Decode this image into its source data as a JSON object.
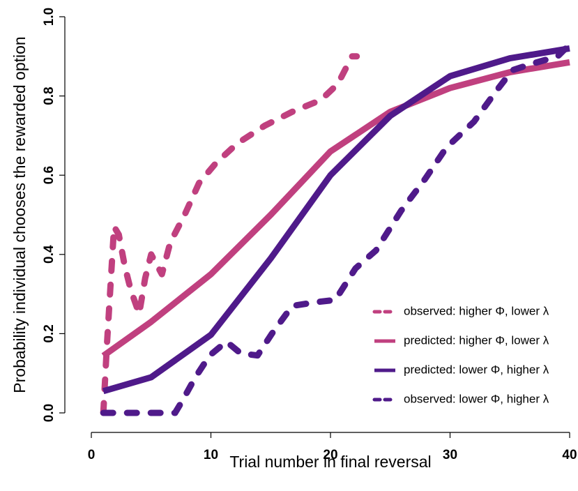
{
  "chart_data": {
    "type": "line",
    "xlabel": "Trial number in final reversal",
    "ylabel": "Probability individual chooses the rewarded option",
    "xlim": [
      0,
      40
    ],
    "xticks": [
      0,
      10,
      20,
      30,
      40
    ],
    "ylim": [
      0,
      1
    ],
    "yticks": [
      {
        "value": 0,
        "label": "0.0"
      },
      0.2,
      0.4,
      0.6,
      0.8,
      {
        "value": 1,
        "label": "1.0"
      }
    ],
    "legend": "bottom-right",
    "series": [
      {
        "name": "observed: higher Φ, lower λ",
        "color": "#c0407f",
        "style": "dashed",
        "x": [
          1,
          1.3,
          1.9,
          2.3,
          2.8,
          3.3,
          4,
          4.5,
          5,
          5.9,
          6.6,
          7.8,
          9,
          10.4,
          12.2,
          14.5,
          16.8,
          19.2,
          20.6,
          21.8,
          22.2
        ],
        "values": [
          0,
          0.17,
          0.47,
          0.45,
          0.37,
          0.31,
          0.25,
          0.34,
          0.4,
          0.35,
          0.43,
          0.5,
          0.58,
          0.63,
          0.68,
          0.725,
          0.76,
          0.79,
          0.83,
          0.9,
          0.9
        ]
      },
      {
        "name": "predicted: higher Φ, lower λ",
        "color": "#c0407f",
        "style": "solid",
        "x": [
          1,
          5,
          10,
          15,
          20,
          25,
          30,
          35,
          40
        ],
        "values": [
          0.144,
          0.23,
          0.35,
          0.5,
          0.66,
          0.76,
          0.82,
          0.86,
          0.885
        ]
      },
      {
        "name": "predicted: lower Φ, higher λ",
        "color": "#4f1a8a",
        "style": "solid",
        "x": [
          1,
          5,
          10,
          15,
          20,
          25,
          30,
          35,
          40
        ],
        "values": [
          0.055,
          0.09,
          0.197,
          0.39,
          0.6,
          0.75,
          0.85,
          0.895,
          0.92
        ]
      },
      {
        "name": "observed: lower Φ, higher λ",
        "color": "#4f1a8a",
        "style": "dashed",
        "x": [
          1,
          7,
          7.6,
          8.7,
          9.9,
          11.3,
          12.5,
          13.9,
          15.1,
          16.8,
          18.9,
          20.4,
          22.1,
          23.8,
          25.9,
          27.9,
          29.7,
          32,
          33.8,
          35.2,
          36.7,
          39,
          40
        ],
        "values": [
          0,
          0,
          0.03,
          0.09,
          0.145,
          0.18,
          0.15,
          0.145,
          0.2,
          0.27,
          0.28,
          0.285,
          0.365,
          0.41,
          0.51,
          0.59,
          0.67,
          0.735,
          0.81,
          0.865,
          0.88,
          0.9,
          0.93
        ]
      }
    ]
  }
}
